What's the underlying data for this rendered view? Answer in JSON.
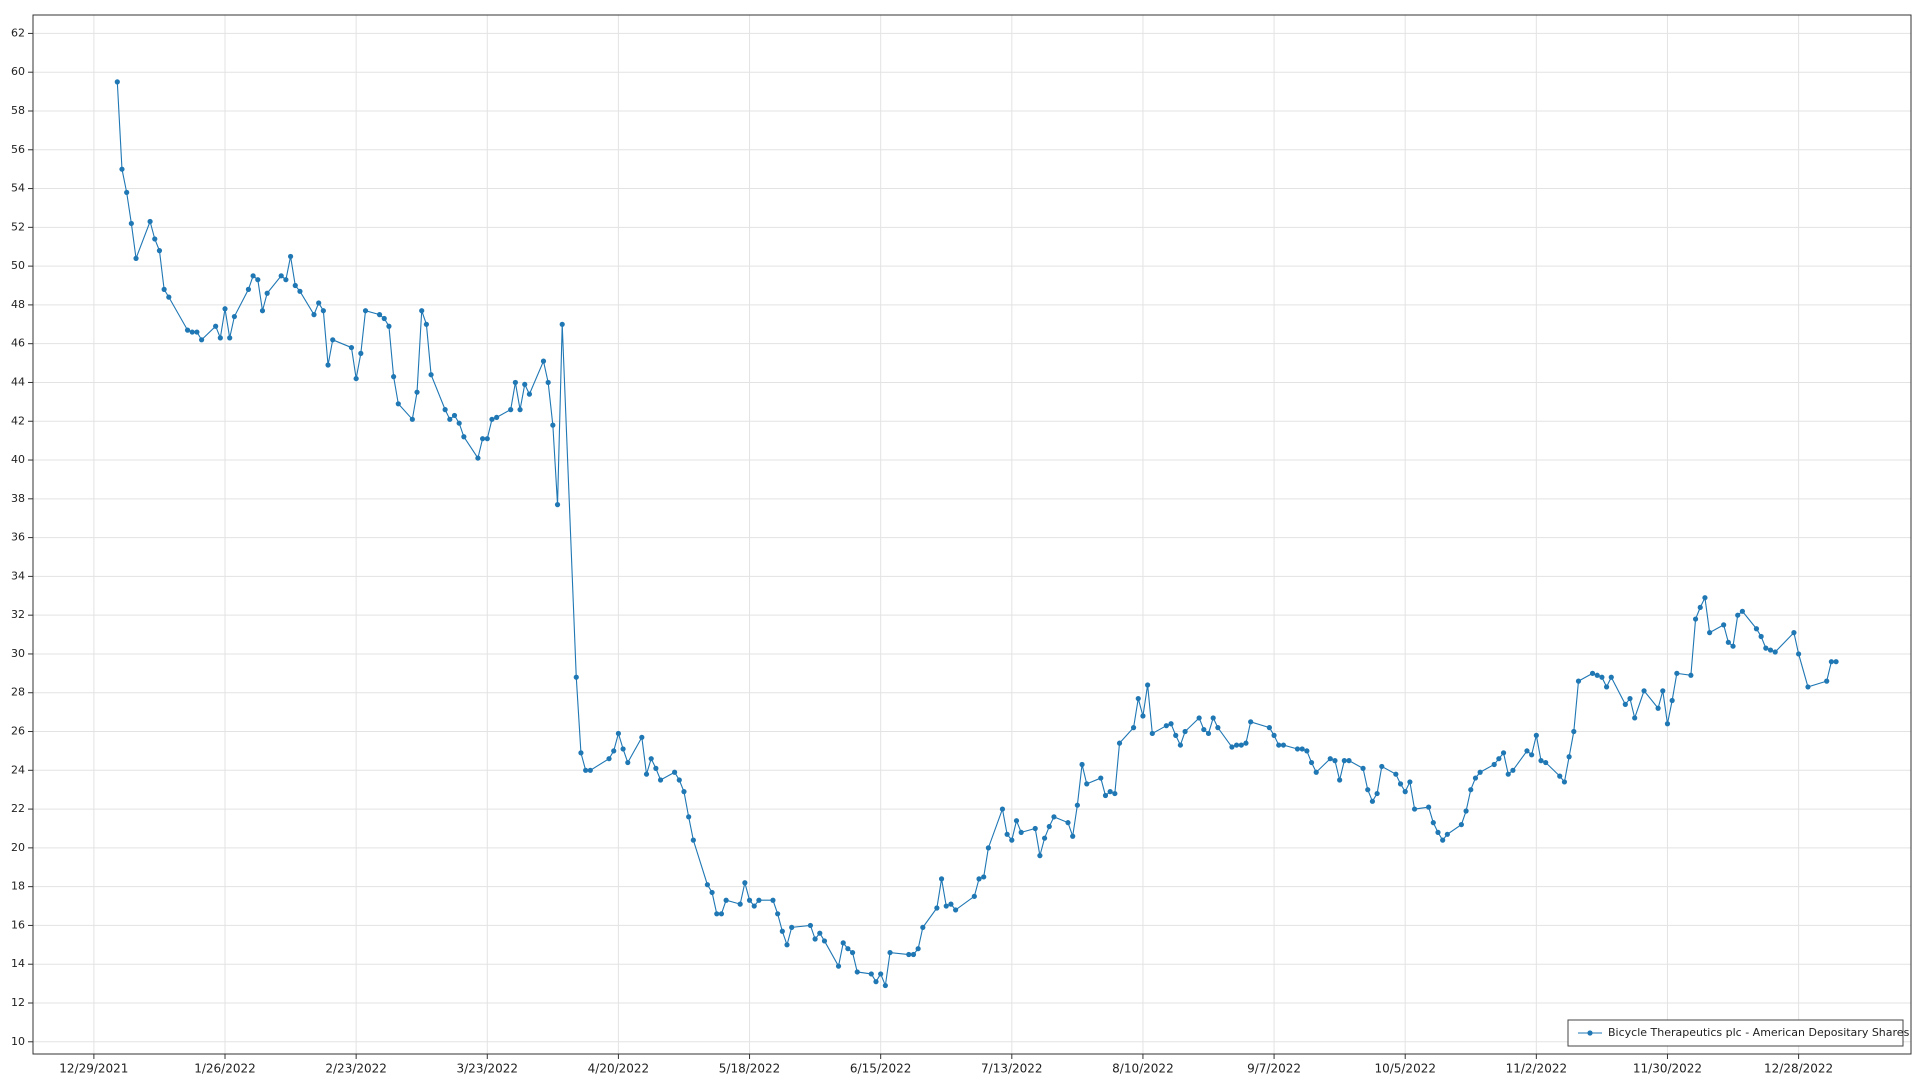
{
  "chart_data": {
    "type": "line",
    "x": [
      "2022-01-03",
      "2022-01-04",
      "2022-01-05",
      "2022-01-06",
      "2022-01-07",
      "2022-01-10",
      "2022-01-11",
      "2022-01-12",
      "2022-01-13",
      "2022-01-14",
      "2022-01-18",
      "2022-01-19",
      "2022-01-20",
      "2022-01-21",
      "2022-01-24",
      "2022-01-25",
      "2022-01-26",
      "2022-01-27",
      "2022-01-28",
      "2022-01-31",
      "2022-02-01",
      "2022-02-02",
      "2022-02-03",
      "2022-02-04",
      "2022-02-07",
      "2022-02-08",
      "2022-02-09",
      "2022-02-10",
      "2022-02-11",
      "2022-02-14",
      "2022-02-15",
      "2022-02-16",
      "2022-02-17",
      "2022-02-18",
      "2022-02-22",
      "2022-02-23",
      "2022-02-24",
      "2022-02-25",
      "2022-02-28",
      "2022-03-01",
      "2022-03-02",
      "2022-03-03",
      "2022-03-04",
      "2022-03-07",
      "2022-03-08",
      "2022-03-09",
      "2022-03-10",
      "2022-03-11",
      "2022-03-14",
      "2022-03-15",
      "2022-03-16",
      "2022-03-17",
      "2022-03-18",
      "2022-03-21",
      "2022-03-22",
      "2022-03-23",
      "2022-03-24",
      "2022-03-25",
      "2022-03-28",
      "2022-03-29",
      "2022-03-30",
      "2022-03-31",
      "2022-04-01",
      "2022-04-04",
      "2022-04-05",
      "2022-04-06",
      "2022-04-07",
      "2022-04-08",
      "2022-04-11",
      "2022-04-12",
      "2022-04-13",
      "2022-04-14",
      "2022-04-18",
      "2022-04-19",
      "2022-04-20",
      "2022-04-21",
      "2022-04-22",
      "2022-04-25",
      "2022-04-26",
      "2022-04-27",
      "2022-04-28",
      "2022-04-29",
      "2022-05-02",
      "2022-05-03",
      "2022-05-04",
      "2022-05-05",
      "2022-05-06",
      "2022-05-09",
      "2022-05-10",
      "2022-05-11",
      "2022-05-12",
      "2022-05-13",
      "2022-05-16",
      "2022-05-17",
      "2022-05-18",
      "2022-05-19",
      "2022-05-20",
      "2022-05-23",
      "2022-05-24",
      "2022-05-25",
      "2022-05-26",
      "2022-05-27",
      "2022-05-31",
      "2022-06-01",
      "2022-06-02",
      "2022-06-03",
      "2022-06-06",
      "2022-06-07",
      "2022-06-08",
      "2022-06-09",
      "2022-06-10",
      "2022-06-13",
      "2022-06-14",
      "2022-06-15",
      "2022-06-16",
      "2022-06-17",
      "2022-06-21",
      "2022-06-22",
      "2022-06-23",
      "2022-06-24",
      "2022-06-27",
      "2022-06-28",
      "2022-06-29",
      "2022-06-30",
      "2022-07-01",
      "2022-07-05",
      "2022-07-06",
      "2022-07-07",
      "2022-07-08",
      "2022-07-11",
      "2022-07-12",
      "2022-07-13",
      "2022-07-14",
      "2022-07-15",
      "2022-07-18",
      "2022-07-19",
      "2022-07-20",
      "2022-07-21",
      "2022-07-22",
      "2022-07-25",
      "2022-07-26",
      "2022-07-27",
      "2022-07-28",
      "2022-07-29",
      "2022-08-01",
      "2022-08-02",
      "2022-08-03",
      "2022-08-04",
      "2022-08-05",
      "2022-08-08",
      "2022-08-09",
      "2022-08-10",
      "2022-08-11",
      "2022-08-12",
      "2022-08-15",
      "2022-08-16",
      "2022-08-17",
      "2022-08-18",
      "2022-08-19",
      "2022-08-22",
      "2022-08-23",
      "2022-08-24",
      "2022-08-25",
      "2022-08-26",
      "2022-08-29",
      "2022-08-30",
      "2022-08-31",
      "2022-09-01",
      "2022-09-02",
      "2022-09-06",
      "2022-09-07",
      "2022-09-08",
      "2022-09-09",
      "2022-09-12",
      "2022-09-13",
      "2022-09-14",
      "2022-09-15",
      "2022-09-16",
      "2022-09-19",
      "2022-09-20",
      "2022-09-21",
      "2022-09-22",
      "2022-09-23",
      "2022-09-26",
      "2022-09-27",
      "2022-09-28",
      "2022-09-29",
      "2022-09-30",
      "2022-10-03",
      "2022-10-04",
      "2022-10-05",
      "2022-10-06",
      "2022-10-07",
      "2022-10-10",
      "2022-10-11",
      "2022-10-12",
      "2022-10-13",
      "2022-10-14",
      "2022-10-17",
      "2022-10-18",
      "2022-10-19",
      "2022-10-20",
      "2022-10-21",
      "2022-10-24",
      "2022-10-25",
      "2022-10-26",
      "2022-10-27",
      "2022-10-28",
      "2022-10-31",
      "2022-11-01",
      "2022-11-02",
      "2022-11-03",
      "2022-11-04",
      "2022-11-07",
      "2022-11-08",
      "2022-11-09",
      "2022-11-10",
      "2022-11-11",
      "2022-11-14",
      "2022-11-15",
      "2022-11-16",
      "2022-11-17",
      "2022-11-18",
      "2022-11-21",
      "2022-11-22",
      "2022-11-23",
      "2022-11-25",
      "2022-11-28",
      "2022-11-29",
      "2022-11-30",
      "2022-12-01",
      "2022-12-02",
      "2022-12-05",
      "2022-12-06",
      "2022-12-07",
      "2022-12-08",
      "2022-12-09",
      "2022-12-12",
      "2022-12-13",
      "2022-12-14",
      "2022-12-15",
      "2022-12-16",
      "2022-12-19",
      "2022-12-20",
      "2022-12-21",
      "2022-12-22",
      "2022-12-23",
      "2022-12-27",
      "2022-12-28",
      "2022-12-30",
      "2023-01-03",
      "2023-01-04",
      "2023-01-05"
    ],
    "series": [
      {
        "name": "Bicycle Therapeutics plc - American Depositary Shares",
        "color": "#1f77b4",
        "values": [
          59.5,
          55.0,
          53.8,
          52.2,
          50.4,
          52.3,
          51.4,
          50.8,
          48.8,
          48.4,
          46.7,
          46.6,
          46.6,
          46.2,
          46.9,
          46.3,
          47.8,
          46.3,
          47.4,
          48.8,
          49.5,
          49.3,
          47.7,
          48.6,
          49.5,
          49.3,
          50.5,
          49.0,
          48.7,
          47.5,
          48.1,
          47.7,
          44.9,
          46.2,
          45.8,
          44.2,
          45.5,
          47.7,
          47.5,
          47.3,
          46.9,
          44.3,
          42.9,
          42.1,
          43.5,
          47.7,
          47.0,
          44.4,
          42.6,
          42.1,
          42.3,
          41.9,
          41.2,
          40.1,
          41.1,
          41.1,
          42.1,
          42.2,
          42.6,
          44.0,
          42.6,
          43.9,
          43.4,
          45.1,
          44.0,
          41.8,
          37.7,
          47.0,
          28.8,
          24.9,
          24.0,
          24.0,
          24.6,
          25.0,
          25.9,
          25.1,
          24.4,
          25.7,
          23.8,
          24.6,
          24.1,
          23.5,
          23.9,
          23.5,
          22.9,
          21.6,
          20.4,
          18.1,
          17.7,
          16.6,
          16.6,
          17.3,
          17.1,
          18.2,
          17.3,
          17.0,
          17.3,
          17.3,
          16.6,
          15.7,
          15.0,
          15.9,
          16.0,
          15.3,
          15.6,
          15.2,
          13.9,
          15.1,
          14.8,
          14.6,
          13.6,
          13.5,
          13.1,
          13.5,
          12.9,
          14.6,
          14.5,
          14.5,
          14.8,
          15.9,
          16.9,
          18.4,
          17.0,
          17.1,
          16.8,
          17.5,
          18.4,
          18.5,
          20.0,
          22.0,
          20.7,
          20.4,
          21.4,
          20.8,
          21.0,
          19.6,
          20.5,
          21.1,
          21.6,
          21.3,
          20.6,
          22.2,
          24.3,
          23.3,
          23.6,
          22.7,
          22.9,
          22.8,
          25.4,
          26.2,
          27.7,
          26.8,
          28.4,
          25.9,
          26.3,
          26.4,
          25.8,
          25.3,
          26.0,
          26.7,
          26.1,
          25.9,
          26.7,
          26.2,
          25.2,
          25.3,
          25.3,
          25.4,
          26.5,
          26.2,
          25.8,
          25.3,
          25.3,
          25.1,
          25.1,
          25.0,
          24.4,
          23.9,
          24.6,
          24.5,
          23.5,
          24.5,
          24.5,
          24.1,
          23.0,
          22.4,
          22.8,
          24.2,
          23.8,
          23.3,
          22.9,
          23.4,
          22.0,
          22.1,
          21.3,
          20.8,
          20.4,
          20.7,
          21.2,
          21.9,
          23.0,
          23.6,
          23.9,
          24.3,
          24.6,
          24.9,
          23.8,
          24.0,
          25.0,
          24.8,
          25.8,
          24.5,
          24.4,
          23.7,
          23.4,
          24.7,
          26.0,
          28.6,
          29.0,
          28.9,
          28.8,
          28.3,
          28.8,
          27.4,
          27.7,
          26.7,
          28.1,
          27.2,
          28.1,
          26.4,
          27.6,
          29.0,
          28.9,
          31.8,
          32.4,
          32.9,
          31.1,
          31.5,
          30.6,
          30.4,
          32.0,
          32.2,
          31.3,
          30.9,
          30.3,
          30.2,
          30.1,
          31.1,
          30.0,
          28.3,
          28.6,
          29.6,
          29.6
        ]
      }
    ],
    "xlim": [
      "2021-12-16",
      "2023-01-21"
    ],
    "xticks": [
      {
        "value": "2021-12-29",
        "label": "12/29/2021"
      },
      {
        "value": "2022-01-26",
        "label": "1/26/2022"
      },
      {
        "value": "2022-02-23",
        "label": "2/23/2022"
      },
      {
        "value": "2022-03-23",
        "label": "3/23/2022"
      },
      {
        "value": "2022-04-20",
        "label": "4/20/2022"
      },
      {
        "value": "2022-05-18",
        "label": "5/18/2022"
      },
      {
        "value": "2022-06-15",
        "label": "6/15/2022"
      },
      {
        "value": "2022-07-13",
        "label": "7/13/2022"
      },
      {
        "value": "2022-08-10",
        "label": "8/10/2022"
      },
      {
        "value": "2022-09-07",
        "label": "9/7/2022"
      },
      {
        "value": "2022-10-05",
        "label": "10/5/2022"
      },
      {
        "value": "2022-11-02",
        "label": "11/2/2022"
      },
      {
        "value": "2022-11-30",
        "label": "11/30/2022"
      },
      {
        "value": "2022-12-28",
        "label": "12/28/2022"
      }
    ],
    "ylim": [
      9.37,
      62.95
    ],
    "yticks": [
      10,
      12,
      14,
      16,
      18,
      20,
      22,
      24,
      26,
      28,
      30,
      32,
      34,
      36,
      38,
      40,
      42,
      44,
      46,
      48,
      50,
      52,
      54,
      56,
      58,
      60,
      62
    ],
    "grid": true,
    "legend": "lower right"
  }
}
